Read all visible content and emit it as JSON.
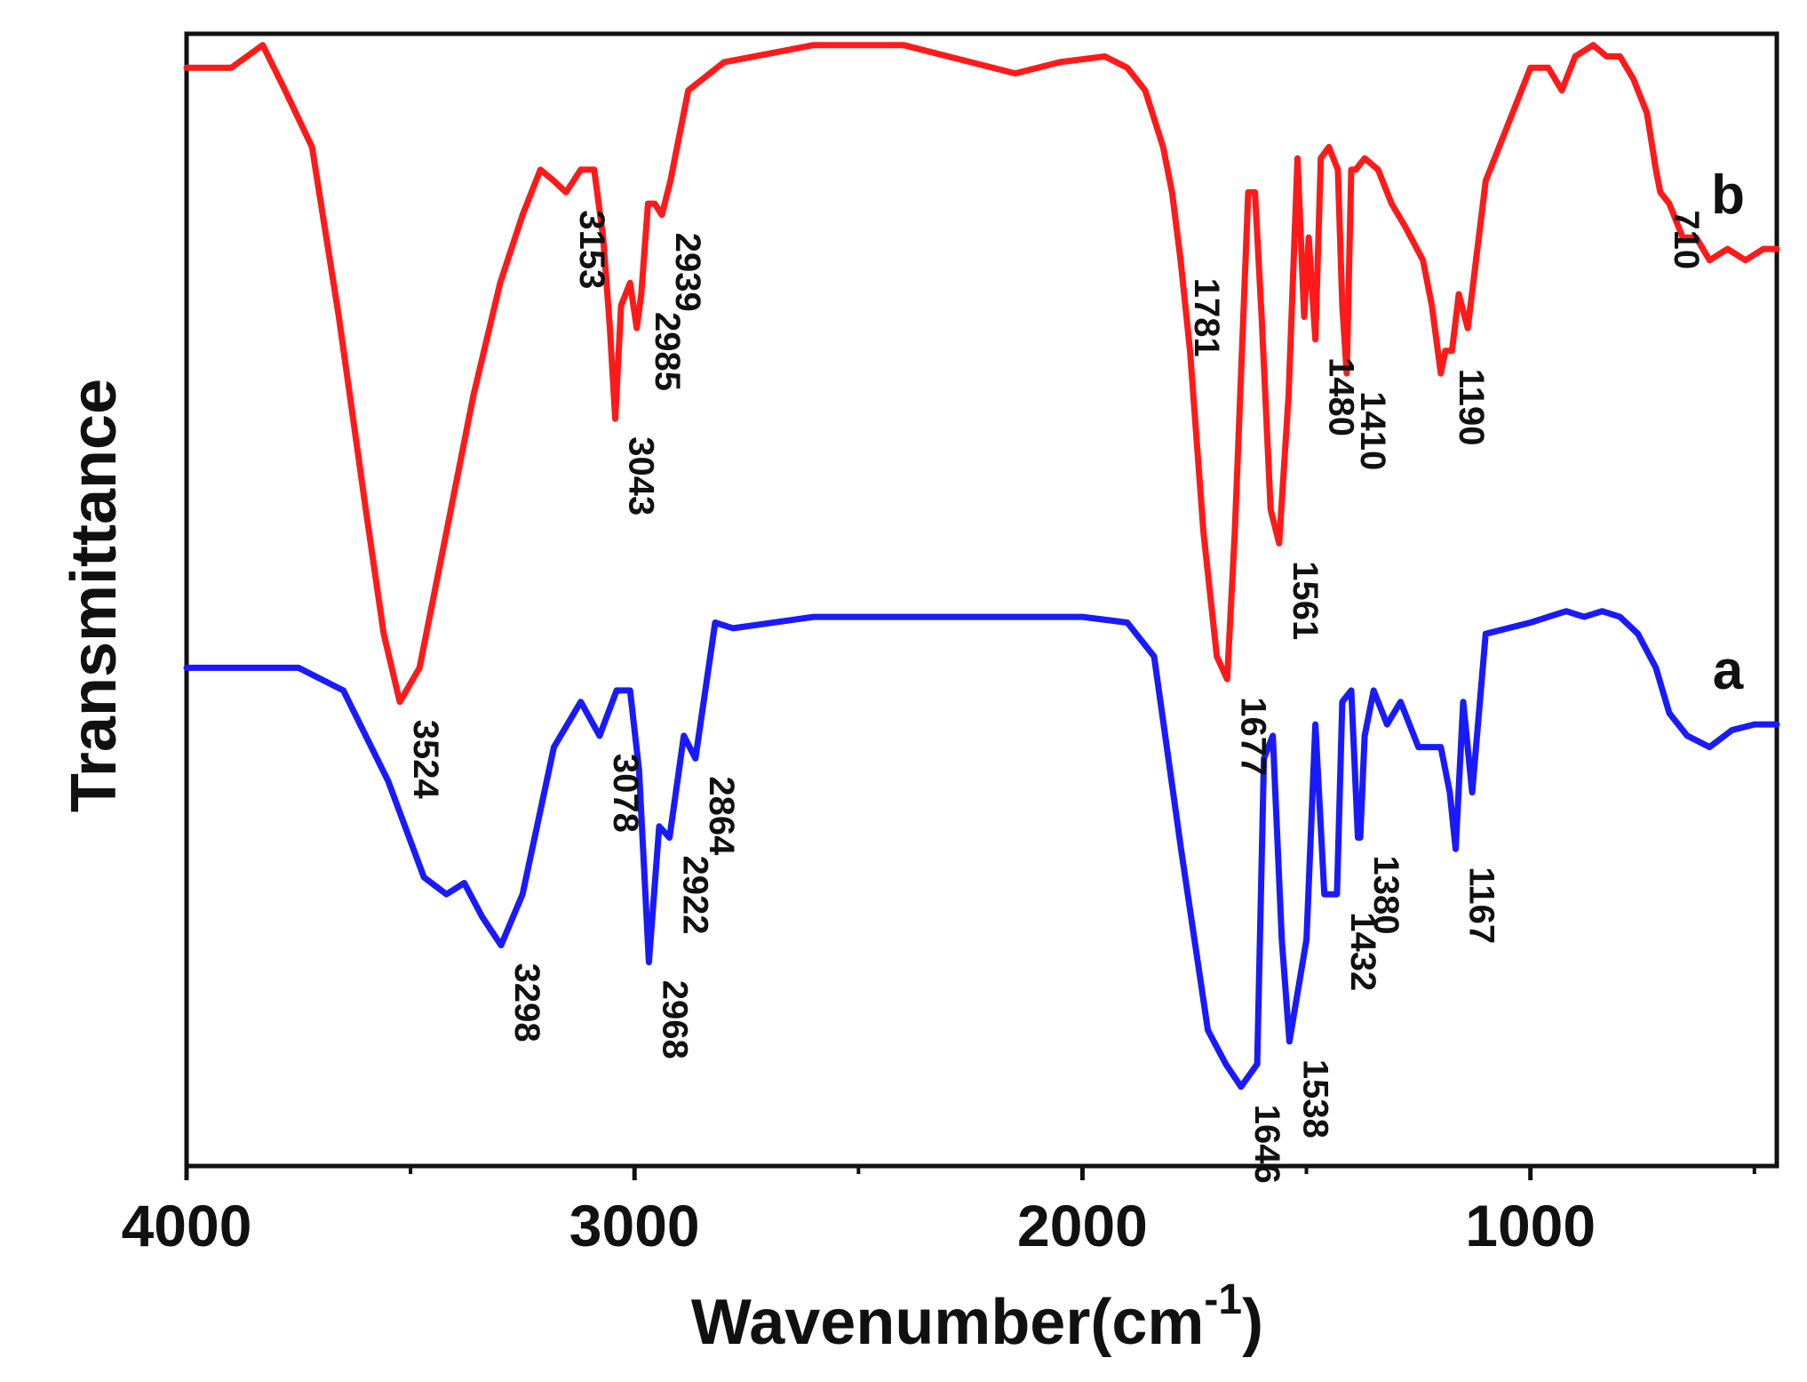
{
  "chart_data": {
    "type": "line",
    "title": "",
    "xlabel": "Wavenumber(cm",
    "xlabel_superscript": "-1",
    "xlabel_suffix": ")",
    "ylabel": "Transmittance",
    "xlim": [
      4000,
      450
    ],
    "ylim": [
      0,
      1
    ],
    "x_reversed": true,
    "xticks": [
      4000,
      3000,
      2000,
      1000
    ],
    "yticks": [],
    "grid": false,
    "legend": "none",
    "series": [
      {
        "name": "a",
        "tag": "a",
        "color": "#1a1aff",
        "x": [
          4000,
          3900,
          3750,
          3650,
          3550,
          3470,
          3420,
          3380,
          3340,
          3298,
          3250,
          3180,
          3120,
          3078,
          3040,
          3010,
          2990,
          2968,
          2945,
          2922,
          2890,
          2864,
          2820,
          2780,
          2600,
          2400,
          2200,
          2000,
          1900,
          1840,
          1780,
          1720,
          1680,
          1646,
          1610,
          1595,
          1575,
          1555,
          1538,
          1500,
          1480,
          1460,
          1450,
          1432,
          1420,
          1400,
          1385,
          1380,
          1370,
          1350,
          1320,
          1290,
          1250,
          1200,
          1180,
          1167,
          1150,
          1130,
          1100,
          1000,
          960,
          920,
          880,
          840,
          800,
          760,
          720,
          690,
          650,
          600,
          550,
          500,
          450
        ],
        "y": [
          0.44,
          0.44,
          0.44,
          0.42,
          0.34,
          0.255,
          0.24,
          0.25,
          0.22,
          0.195,
          0.24,
          0.37,
          0.41,
          0.38,
          0.42,
          0.42,
          0.35,
          0.18,
          0.3,
          0.29,
          0.38,
          0.36,
          0.48,
          0.475,
          0.485,
          0.485,
          0.485,
          0.485,
          0.48,
          0.45,
          0.28,
          0.12,
          0.09,
          0.07,
          0.09,
          0.36,
          0.38,
          0.2,
          0.11,
          0.2,
          0.39,
          0.24,
          0.24,
          0.24,
          0.41,
          0.42,
          0.29,
          0.29,
          0.38,
          0.42,
          0.39,
          0.41,
          0.37,
          0.37,
          0.33,
          0.28,
          0.41,
          0.33,
          0.47,
          0.48,
          0.485,
          0.49,
          0.485,
          0.49,
          0.485,
          0.47,
          0.44,
          0.4,
          0.38,
          0.37,
          0.385,
          0.39,
          0.39
        ],
        "peak_labels": [
          {
            "text": "3298",
            "x": 3298,
            "y": 0.195
          },
          {
            "text": "3078",
            "x": 3078,
            "y": 0.38
          },
          {
            "text": "2968",
            "x": 2968,
            "y": 0.18
          },
          {
            "text": "2922",
            "x": 2922,
            "y": 0.29
          },
          {
            "text": "2864",
            "x": 2864,
            "y": 0.36
          },
          {
            "text": "1646",
            "x": 1646,
            "y": 0.07
          },
          {
            "text": "1538",
            "x": 1538,
            "y": 0.11
          },
          {
            "text": "1432",
            "x": 1432,
            "y": 0.24
          },
          {
            "text": "1380",
            "x": 1380,
            "y": 0.29
          },
          {
            "text": "1167",
            "x": 1167,
            "y": 0.28
          }
        ]
      },
      {
        "name": "b",
        "tag": "b",
        "color": "#ff1a1a",
        "x": [
          4000,
          3900,
          3830,
          3780,
          3720,
          3660,
          3600,
          3560,
          3524,
          3480,
          3420,
          3360,
          3300,
          3250,
          3210,
          3180,
          3153,
          3120,
          3090,
          3070,
          3055,
          3043,
          3030,
          3010,
          2995,
          2985,
          2970,
          2955,
          2939,
          2920,
          2880,
          2800,
          2600,
          2400,
          2250,
          2150,
          2050,
          1950,
          1900,
          1860,
          1820,
          1800,
          1781,
          1760,
          1730,
          1700,
          1677,
          1660,
          1630,
          1615,
          1600,
          1580,
          1561,
          1540,
          1520,
          1505,
          1495,
          1480,
          1468,
          1450,
          1430,
          1420,
          1410,
          1400,
          1390,
          1370,
          1340,
          1310,
          1280,
          1240,
          1220,
          1200,
          1190,
          1175,
          1160,
          1140,
          1100,
          1000,
          960,
          930,
          900,
          860,
          830,
          800,
          770,
          740,
          720,
          710,
          690,
          660,
          630,
          600,
          560,
          520,
          480,
          450
        ],
        "y": [
          0.97,
          0.97,
          0.99,
          0.95,
          0.9,
          0.75,
          0.58,
          0.47,
          0.41,
          0.44,
          0.56,
          0.68,
          0.78,
          0.84,
          0.88,
          0.87,
          0.86,
          0.88,
          0.88,
          0.82,
          0.74,
          0.66,
          0.76,
          0.78,
          0.74,
          0.77,
          0.85,
          0.85,
          0.84,
          0.87,
          0.95,
          0.975,
          0.99,
          0.99,
          0.975,
          0.965,
          0.975,
          0.98,
          0.97,
          0.95,
          0.9,
          0.86,
          0.8,
          0.72,
          0.56,
          0.45,
          0.43,
          0.56,
          0.86,
          0.86,
          0.75,
          0.58,
          0.55,
          0.68,
          0.89,
          0.75,
          0.82,
          0.73,
          0.89,
          0.9,
          0.88,
          0.76,
          0.7,
          0.88,
          0.88,
          0.89,
          0.88,
          0.85,
          0.83,
          0.8,
          0.76,
          0.7,
          0.72,
          0.72,
          0.77,
          0.74,
          0.87,
          0.97,
          0.97,
          0.95,
          0.98,
          0.99,
          0.98,
          0.98,
          0.96,
          0.93,
          0.88,
          0.86,
          0.85,
          0.82,
          0.82,
          0.8,
          0.81,
          0.8,
          0.81,
          0.81
        ],
        "peak_labels": [
          {
            "text": "3524",
            "x": 3524,
            "y": 0.41
          },
          {
            "text": "3153",
            "x": 3153,
            "y": 0.86
          },
          {
            "text": "3043",
            "x": 3043,
            "y": 0.66
          },
          {
            "text": "2985",
            "x": 2985,
            "y": 0.77
          },
          {
            "text": "2939",
            "x": 2939,
            "y": 0.84
          },
          {
            "text": "1781",
            "x": 1781,
            "y": 0.8
          },
          {
            "text": "1677",
            "x": 1677,
            "y": 0.43
          },
          {
            "text": "1561",
            "x": 1561,
            "y": 0.55
          },
          {
            "text": "1480",
            "x": 1480,
            "y": 0.73
          },
          {
            "text": "1410",
            "x": 1410,
            "y": 0.7
          },
          {
            "text": "1190",
            "x": 1190,
            "y": 0.72
          },
          {
            "text": "710",
            "x": 710,
            "y": 0.86
          }
        ]
      }
    ]
  }
}
